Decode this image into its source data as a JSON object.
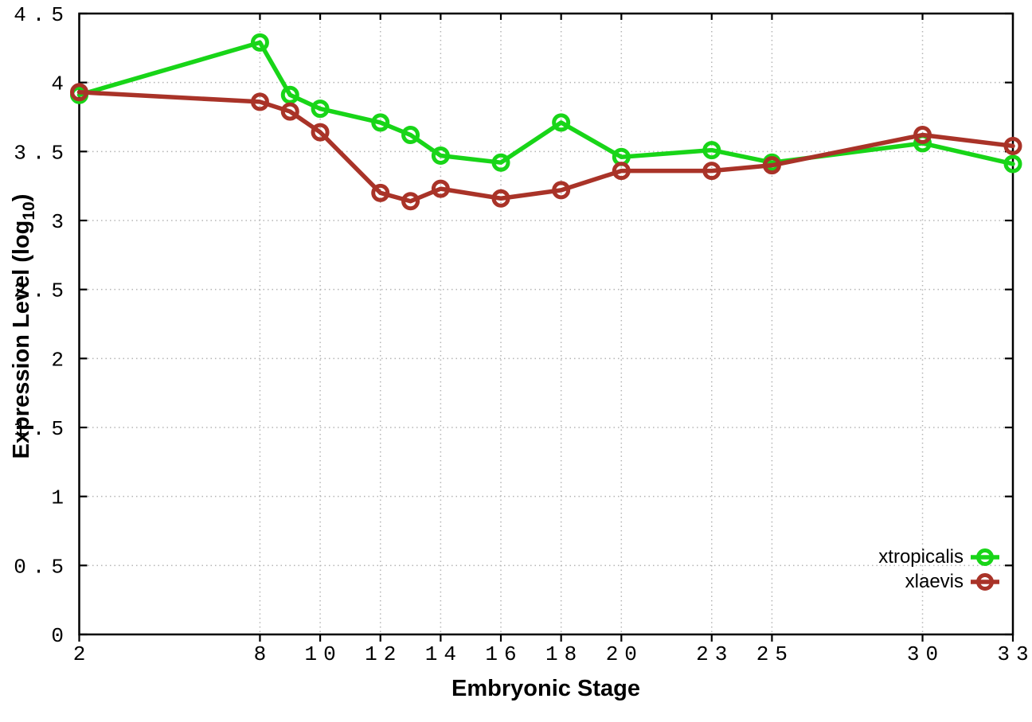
{
  "chart_data": {
    "type": "line",
    "title": "",
    "xlabel": "Embryonic Stage",
    "ylabel": "Expression Level (log10)",
    "ylabel_parts": {
      "prefix": "Expression Level (log",
      "sub": "10",
      "suffix": ")"
    },
    "x": [
      2,
      8,
      9,
      10,
      12,
      13,
      14,
      16,
      18,
      20,
      23,
      25,
      30,
      33
    ],
    "series": [
      {
        "name": "xtropicalis",
        "color": "#18d518",
        "values": [
          3.91,
          4.29,
          3.91,
          3.81,
          3.71,
          3.62,
          3.47,
          3.42,
          3.71,
          3.46,
          3.51,
          3.42,
          3.56,
          3.41
        ]
      },
      {
        "name": "xlaevis",
        "color": "#a93328",
        "values": [
          3.93,
          3.86,
          3.79,
          3.64,
          3.2,
          3.14,
          3.23,
          3.16,
          3.22,
          3.36,
          3.36,
          3.4,
          3.62,
          3.54
        ]
      }
    ],
    "xlim": [
      2,
      33
    ],
    "ylim": [
      0,
      4.5
    ],
    "xticks": [
      2,
      8,
      10,
      12,
      14,
      16,
      18,
      20,
      23,
      25,
      30,
      33
    ],
    "xtick_labels": [
      "2",
      "8",
      "10",
      "12",
      "14",
      "16",
      "18",
      "20",
      "23",
      "25",
      "30",
      "33"
    ],
    "yticks": [
      0,
      0.5,
      1,
      1.5,
      2,
      2.5,
      3,
      3.5,
      4,
      4.5
    ],
    "ytick_labels": [
      "0",
      "0.5",
      "1",
      "1.5",
      "2",
      "2.5",
      "3",
      "3.5",
      "4",
      "4.5"
    ],
    "grid": true,
    "marker": "open-circle",
    "legend_position": "inside-bottom-right",
    "colors": {
      "background": "#ffffff",
      "border": "#000000",
      "grid": "#b5b5b5",
      "text": "#000000"
    }
  }
}
